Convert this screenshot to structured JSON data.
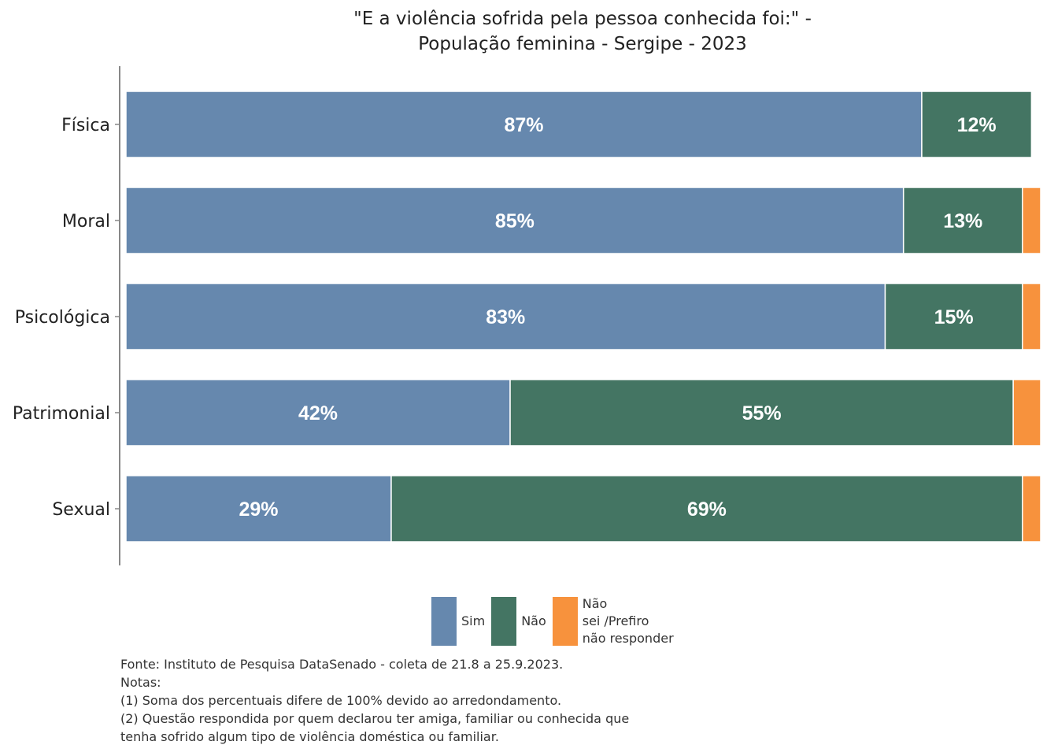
{
  "title_lines": [
    "\"E a violência sofrida pela pessoa conhecida foi:\" -",
    "População feminina - Sergipe - 2023"
  ],
  "colors": {
    "sim": "#6688ae",
    "nao": "#447563",
    "ns": "#f7923d"
  },
  "chart_data": {
    "type": "bar",
    "orientation": "horizontal",
    "stacked": true,
    "title": "\"E a violência sofrida pela pessoa conhecida foi:\" - População feminina - Sergipe - 2023",
    "categories": [
      "Física",
      "Moral",
      "Psicológica",
      "Patrimonial",
      "Sexual"
    ],
    "series": [
      {
        "name": "Sim",
        "values": [
          87,
          85,
          83,
          42,
          29
        ],
        "labels": [
          "87%",
          "85%",
          "83%",
          "42%",
          "29%"
        ],
        "color": "#6688ae"
      },
      {
        "name": "Não",
        "values": [
          12,
          13,
          15,
          55,
          69
        ],
        "labels": [
          "12%",
          "13%",
          "15%",
          "55%",
          "69%"
        ],
        "color": "#447563"
      },
      {
        "name": "Não sei /Prefiro não responder",
        "values": [
          0,
          2,
          2,
          3,
          2
        ],
        "labels": [
          "",
          "",
          "",
          "",
          ""
        ],
        "color": "#f7923d"
      }
    ],
    "xlim": [
      0,
      100
    ],
    "grid": false,
    "legend_position": "bottom"
  },
  "legend": {
    "items": [
      {
        "key": "sim",
        "lines": [
          "Sim"
        ]
      },
      {
        "key": "nao",
        "lines": [
          "Não"
        ]
      },
      {
        "key": "ns",
        "lines": [
          "Não",
          "sei /Prefiro",
          "não responder"
        ]
      }
    ]
  },
  "footnotes": {
    "lines": [
      "Fonte: Instituto de Pesquisa DataSenado - coleta de 21.8 a 25.9.2023.",
      "Notas:",
      "(1) Soma dos percentuais difere de 100% devido ao arredondamento.",
      "(2) Questão respondida por quem declarou ter amiga, familiar ou conhecida que",
      "tenha sofrido algum tipo de violência doméstica ou familiar."
    ]
  }
}
